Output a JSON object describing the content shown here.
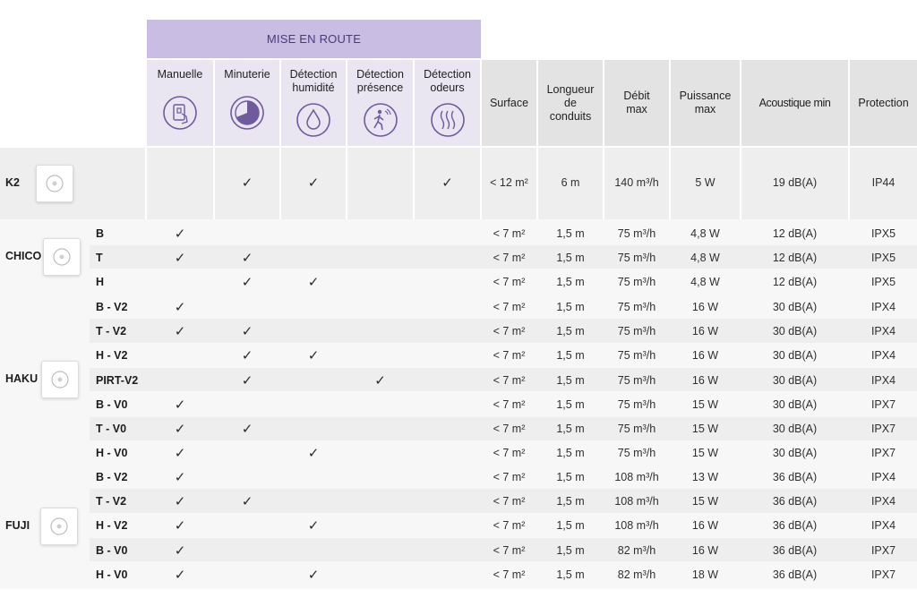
{
  "banner": "MISE EN ROUTE",
  "headers": {
    "manuelle": "Manuelle",
    "minuterie": "Minuterie",
    "detection_humidite": [
      "Détection",
      "humidité"
    ],
    "detection_presence": [
      "Détection",
      "présence"
    ],
    "detection_odeurs": [
      "Détection",
      "odeurs"
    ],
    "surface": "Surface",
    "longueur": [
      "Longueur",
      "de",
      "conduits"
    ],
    "debit": [
      "Débit",
      "max"
    ],
    "puissance": [
      "Puissance",
      "max"
    ],
    "acoustique": "Acoustique min",
    "protection": "Protection"
  },
  "icons": [
    "hand-switch-icon",
    "timer-dial-icon",
    "water-drop-icon",
    "presence-walker-icon",
    "odour-waves-icon"
  ],
  "check_symbol": "✓",
  "groups": [
    {
      "brand": "K2",
      "image": "k2-fan-image",
      "rows": [
        {
          "model": "",
          "checks": [
            false,
            true,
            true,
            false,
            true
          ],
          "surface": "< 12 m²",
          "length": "6 m",
          "flow": "140 m³/h",
          "power": "5 W",
          "acoustic": "19 dB(A)",
          "protection": "IP44"
        }
      ]
    },
    {
      "brand": "CHICO",
      "image": "chico-fan-image",
      "rows": [
        {
          "model": "B",
          "checks": [
            true,
            false,
            false,
            false,
            false
          ],
          "surface": "< 7 m²",
          "length": "1,5 m",
          "flow": "75 m³/h",
          "power": "4,8 W",
          "acoustic": "12 dB(A)",
          "protection": "IPX5"
        },
        {
          "model": "T",
          "checks": [
            true,
            true,
            false,
            false,
            false
          ],
          "surface": "< 7 m²",
          "length": "1,5 m",
          "flow": "75 m³/h",
          "power": "4,8 W",
          "acoustic": "12 dB(A)",
          "protection": "IPX5"
        },
        {
          "model": "H",
          "checks": [
            false,
            true,
            true,
            false,
            false
          ],
          "surface": "< 7 m²",
          "length": "1,5 m",
          "flow": "75 m³/h",
          "power": "4,8 W",
          "acoustic": "12 dB(A)",
          "protection": "IPX5"
        }
      ]
    },
    {
      "brand": "HAKU",
      "image": "haku-fan-image",
      "rows": [
        {
          "model": "B - V2",
          "checks": [
            true,
            false,
            false,
            false,
            false
          ],
          "surface": "< 7 m²",
          "length": "1,5 m",
          "flow": "75 m³/h",
          "power": "16 W",
          "acoustic": "30 dB(A)",
          "protection": "IPX4"
        },
        {
          "model": "T - V2",
          "checks": [
            true,
            true,
            false,
            false,
            false
          ],
          "surface": "< 7 m²",
          "length": "1,5 m",
          "flow": "75 m³/h",
          "power": "16 W",
          "acoustic": "30 dB(A)",
          "protection": "IPX4"
        },
        {
          "model": "H - V2",
          "checks": [
            false,
            true,
            true,
            false,
            false
          ],
          "surface": "< 7 m²",
          "length": "1,5 m",
          "flow": "75 m³/h",
          "power": "16 W",
          "acoustic": "30 dB(A)",
          "protection": "IPX4"
        },
        {
          "model": "PIRT-V2",
          "checks": [
            false,
            true,
            false,
            true,
            false
          ],
          "surface": "< 7 m²",
          "length": "1,5 m",
          "flow": "75 m³/h",
          "power": "16 W",
          "acoustic": "30 dB(A)",
          "protection": "IPX4"
        },
        {
          "model": "B - V0",
          "checks": [
            true,
            false,
            false,
            false,
            false
          ],
          "surface": "< 7 m²",
          "length": "1,5 m",
          "flow": "75 m³/h",
          "power": "15 W",
          "acoustic": "30 dB(A)",
          "protection": "IPX7"
        },
        {
          "model": "T - V0",
          "checks": [
            true,
            true,
            false,
            false,
            false
          ],
          "surface": "< 7 m²",
          "length": "1,5 m",
          "flow": "75 m³/h",
          "power": "15 W",
          "acoustic": "30 dB(A)",
          "protection": "IPX7"
        },
        {
          "model": "H - V0",
          "checks": [
            true,
            false,
            true,
            false,
            false
          ],
          "surface": "< 7 m²",
          "length": "1,5 m",
          "flow": "75 m³/h",
          "power": "15 W",
          "acoustic": "30 dB(A)",
          "protection": "IPX7"
        }
      ]
    },
    {
      "brand": "FUJI",
      "image": "fuji-fan-image",
      "rows": [
        {
          "model": "B - V2",
          "checks": [
            true,
            false,
            false,
            false,
            false
          ],
          "surface": "< 7 m²",
          "length": "1,5 m",
          "flow": "108 m³/h",
          "power": "13 W",
          "acoustic": "36 dB(A)",
          "protection": "IPX4"
        },
        {
          "model": "T - V2",
          "checks": [
            true,
            true,
            false,
            false,
            false
          ],
          "surface": "< 7 m²",
          "length": "1,5 m",
          "flow": "108 m³/h",
          "power": "15 W",
          "acoustic": "36 dB(A)",
          "protection": "IPX4"
        },
        {
          "model": "H - V2",
          "checks": [
            true,
            false,
            true,
            false,
            false
          ],
          "surface": "< 7 m²",
          "length": "1,5 m",
          "flow": "108 m³/h",
          "power": "16 W",
          "acoustic": "36 dB(A)",
          "protection": "IPX4"
        },
        {
          "model": "B - V0",
          "checks": [
            true,
            false,
            false,
            false,
            false
          ],
          "surface": "< 7 m²",
          "length": "1,5 m",
          "flow": "82 m³/h",
          "power": "16 W",
          "acoustic": "36 dB(A)",
          "protection": "IPX7"
        },
        {
          "model": "H - V0",
          "checks": [
            true,
            false,
            true,
            false,
            false
          ],
          "surface": "< 7 m²",
          "length": "1,5 m",
          "flow": "82 m³/h",
          "power": "18 W",
          "acoustic": "36 dB(A)",
          "protection": "IPX7"
        }
      ]
    }
  ],
  "colors": {
    "banner_bg": "#c9bde3",
    "banner_text": "#4a3a78",
    "feature_header_bg": "#e9e6f1",
    "spec_header_bg": "#e3e3e3",
    "row_shade": "#eeeeee",
    "icon_purple": "#6f5a9e"
  }
}
